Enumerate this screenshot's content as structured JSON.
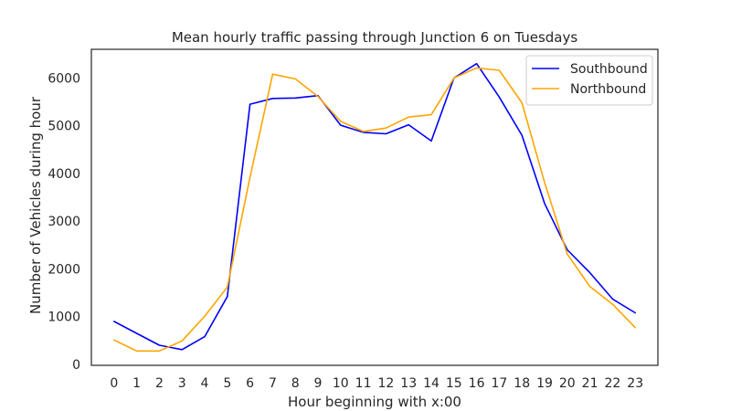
{
  "chart_data": {
    "type": "line",
    "title": "Mean hourly traffic passing through Junction 6 on Tuesdays",
    "xlabel": "Hour beginning with x:00",
    "ylabel": "Number of Vehicles during hour",
    "x": [
      0,
      1,
      2,
      3,
      4,
      5,
      6,
      7,
      8,
      9,
      10,
      11,
      12,
      13,
      14,
      15,
      16,
      17,
      18,
      19,
      20,
      21,
      22,
      23
    ],
    "xlim": [
      -1,
      24
    ],
    "ylim": [
      -20,
      6600
    ],
    "yticks": [
      0,
      1000,
      2000,
      3000,
      4000,
      5000,
      6000
    ],
    "grid": false,
    "legend_position": "top-right",
    "series": [
      {
        "name": "Southbound",
        "color": "#0000ff",
        "values": [
          900,
          650,
          400,
          310,
          580,
          1420,
          5450,
          5570,
          5580,
          5630,
          5010,
          4860,
          4830,
          5020,
          4680,
          6000,
          6300,
          5600,
          4800,
          3370,
          2400,
          1920,
          1370,
          1080
        ]
      },
      {
        "name": "Northbound",
        "color": "#ffa500",
        "values": [
          510,
          280,
          280,
          490,
          1010,
          1620,
          3920,
          6080,
          5980,
          5610,
          5090,
          4880,
          4950,
          5180,
          5230,
          6000,
          6210,
          6160,
          5480,
          3810,
          2310,
          1630,
          1260,
          770
        ]
      }
    ]
  }
}
